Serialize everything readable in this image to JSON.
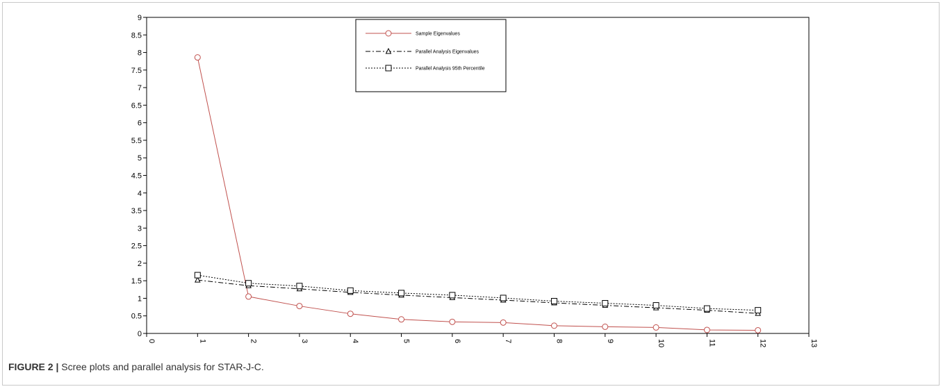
{
  "caption": {
    "label": "FIGURE 2 |",
    "text": " Scree plots and parallel analysis for STAR-J-C."
  },
  "chart_data": {
    "type": "line",
    "title": "",
    "xlabel": "",
    "ylabel": "",
    "xlim": [
      0,
      13
    ],
    "ylim": [
      0,
      9
    ],
    "x_ticks": [
      "0",
      "1",
      "2",
      "3",
      "4",
      "5",
      "6",
      "7",
      "8",
      "9",
      "10",
      "11",
      "12",
      "13"
    ],
    "y_ticks": [
      "0",
      "0.5",
      "1",
      "1.5",
      "2",
      "2.5",
      "3",
      "3.5",
      "4",
      "4.5",
      "5",
      "5.5",
      "6",
      "6.5",
      "7",
      "7.5",
      "8",
      "8.5",
      "9"
    ],
    "grid": false,
    "legend_position": "top-center",
    "x": [
      1,
      2,
      3,
      4,
      5,
      6,
      7,
      8,
      9,
      10,
      11,
      12
    ],
    "series": [
      {
        "name": "Sample Eigenvalues",
        "values": [
          7.86,
          1.05,
          0.78,
          0.56,
          0.4,
          0.33,
          0.31,
          0.22,
          0.19,
          0.17,
          0.1,
          0.09
        ],
        "color": "#c0504d",
        "marker": "circle",
        "line_style": "solid"
      },
      {
        "name": "Parallel Analysis Eigenvalues",
        "values": [
          1.52,
          1.36,
          1.27,
          1.17,
          1.09,
          1.02,
          0.95,
          0.87,
          0.8,
          0.73,
          0.66,
          0.57
        ],
        "color": "#000000",
        "marker": "triangle",
        "line_style": "dashdot"
      },
      {
        "name": "Parallel Analysis 95th Percentile",
        "values": [
          1.66,
          1.43,
          1.35,
          1.22,
          1.15,
          1.09,
          1.01,
          0.92,
          0.86,
          0.8,
          0.71,
          0.66
        ],
        "color": "#000000",
        "marker": "square",
        "line_style": "dotted"
      }
    ]
  }
}
